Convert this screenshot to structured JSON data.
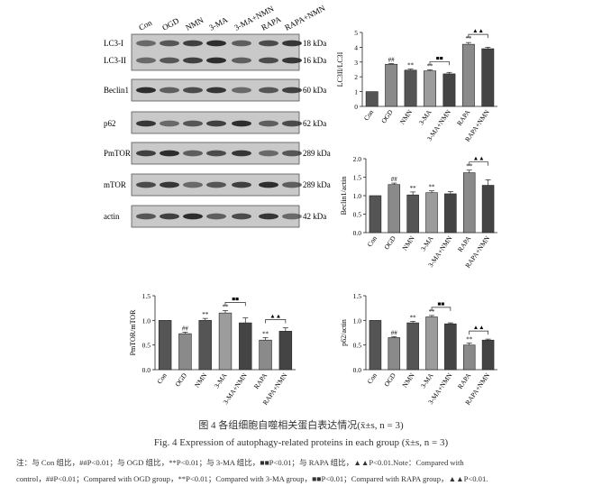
{
  "blot": {
    "lanes": [
      "Con",
      "OGD",
      "NMN",
      "3-MA",
      "3-MA+NMN",
      "RAPA",
      "RAPA+NMN"
    ],
    "rows": [
      {
        "label": "LC3-I",
        "kda": "18 kDa"
      },
      {
        "label": "LC3-II",
        "kda": "16 kDa"
      },
      {
        "label": "Beclin1",
        "kda": "60 kDa"
      },
      {
        "label": "p62",
        "kda": "62 kDa"
      },
      {
        "label": "PmTOR",
        "kda": "289 kDa"
      },
      {
        "label": "mTOR",
        "kda": "289 kDa"
      },
      {
        "label": "actin",
        "kda": "42 kDa"
      }
    ]
  },
  "chart_data": [
    {
      "type": "bar",
      "ylabel": "LC3II/LC3I",
      "categories": [
        "Con",
        "OGD",
        "NMN",
        "3-MA",
        "3-MA+NMN",
        "RAPA",
        "RAPA+NMN"
      ],
      "values": [
        1.0,
        2.85,
        2.45,
        2.4,
        2.2,
        4.2,
        3.9
      ],
      "errors": [
        0.0,
        0.05,
        0.07,
        0.08,
        0.1,
        0.12,
        0.1
      ],
      "ylim": [
        0,
        5
      ],
      "yticks": [
        "0",
        "1",
        "2",
        "3",
        "4",
        "5"
      ],
      "sig_marks": [
        "",
        "##",
        "**",
        "**",
        "",
        "**",
        ""
      ],
      "comparisons": [
        {
          "from": 3,
          "to": 4,
          "mark": "■■"
        },
        {
          "from": 5,
          "to": 6,
          "mark": "▲▲"
        }
      ]
    },
    {
      "type": "bar",
      "ylabel": "Beclin1/actin",
      "categories": [
        "Con",
        "OGD",
        "NMN",
        "3-MA",
        "3-MA+NMN",
        "RAPA",
        "RAPA+NMN"
      ],
      "values": [
        1.0,
        1.3,
        1.02,
        1.08,
        1.05,
        1.62,
        1.28
      ],
      "errors": [
        0.0,
        0.04,
        0.08,
        0.05,
        0.06,
        0.07,
        0.15
      ],
      "ylim": [
        0,
        2
      ],
      "yticks": [
        "0.0",
        "0.5",
        "1.0",
        "1.5",
        "2.0"
      ],
      "sig_marks": [
        "",
        "##",
        "**",
        "**",
        "",
        "**",
        ""
      ],
      "comparisons": [
        {
          "from": 5,
          "to": 6,
          "mark": "▲▲"
        }
      ]
    },
    {
      "type": "bar",
      "ylabel": "PmTOR/mTOR",
      "categories": [
        "Con",
        "OGD",
        "NMN",
        "3-MA",
        "3-MA+NMN",
        "RAPA",
        "RAPA+NMN"
      ],
      "values": [
        1.0,
        0.73,
        1.0,
        1.15,
        0.95,
        0.6,
        0.78
      ],
      "errors": [
        0.0,
        0.03,
        0.04,
        0.05,
        0.1,
        0.05,
        0.07
      ],
      "ylim": [
        0,
        1.5
      ],
      "yticks": [
        "0.0",
        "0.5",
        "1.0",
        "1.5"
      ],
      "sig_marks": [
        "",
        "##",
        "**",
        "**",
        "",
        "**",
        ""
      ],
      "comparisons": [
        {
          "from": 3,
          "to": 4,
          "mark": "■■"
        },
        {
          "from": 5,
          "to": 6,
          "mark": "▲▲"
        }
      ]
    },
    {
      "type": "bar",
      "ylabel": "p62/actin",
      "categories": [
        "Con",
        "OGD",
        "NMN",
        "3-MA",
        "3-MA+NMN",
        "RAPA",
        "RAPA+NMN"
      ],
      "values": [
        1.0,
        0.65,
        0.95,
        1.07,
        0.93,
        0.5,
        0.6
      ],
      "errors": [
        0.0,
        0.02,
        0.03,
        0.03,
        0.02,
        0.04,
        0.02
      ],
      "ylim": [
        0,
        1.5
      ],
      "yticks": [
        "0.0",
        "0.5",
        "1.0",
        "1.5"
      ],
      "sig_marks": [
        "",
        "##",
        "**",
        "**",
        "",
        "**",
        ""
      ],
      "comparisons": [
        {
          "from": 3,
          "to": 4,
          "mark": "■■"
        },
        {
          "from": 5,
          "to": 6,
          "mark": "▲▲"
        }
      ]
    }
  ],
  "caption_cn": "图 4   各组细胞自噬相关蛋白表达情况(x̄±s, n = 3)",
  "caption_en": "Fig. 4    Expression of autophagy-related proteins in each group (x̄±s, n = 3)",
  "note_line1": "注：与 Con 组比，##P<0.01；与 OGD 组比，**P<0.01；与 3-MA 组比，■■P<0.01；与 RAPA 组比，▲▲P<0.01.Note：Compared with",
  "note_line2": "control，##P<0.01；Compared with OGD group，**P<0.01；Compared with 3-MA group，■■P<0.01；Compared with RAPA group，▲▲P<0.01."
}
